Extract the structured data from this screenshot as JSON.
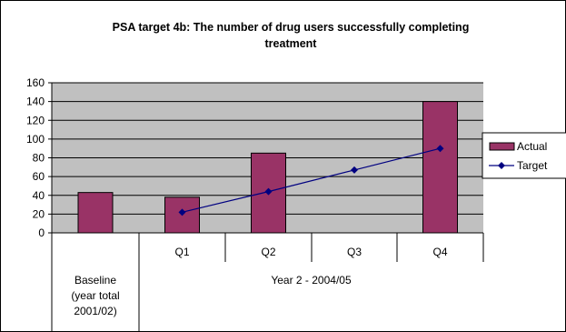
{
  "chart_data": {
    "type": "bar",
    "title_line1": "PSA target 4b: The number of drug users successfully completing",
    "title_line2": "treatment",
    "ylim": [
      0,
      160
    ],
    "yticks": [
      "0",
      "20",
      "40",
      "60",
      "80",
      "100",
      "120",
      "140",
      "160"
    ],
    "grid": true,
    "legend_position": "right",
    "categories": [
      "Baseline",
      "Q1",
      "Q2",
      "Q3",
      "Q4"
    ],
    "category_groups": [
      {
        "label_lines": [
          "Baseline",
          "(year total",
          "2001/02)"
        ],
        "categories": [
          "Baseline"
        ]
      },
      {
        "label_lines": [
          "Year 2 - 2004/05"
        ],
        "categories": [
          "Q1",
          "Q2",
          "Q3",
          "Q4"
        ]
      }
    ],
    "series": [
      {
        "name": "Actual",
        "type": "bar",
        "color": "#993366",
        "values": [
          43,
          38,
          85,
          0,
          140
        ]
      },
      {
        "name": "Target",
        "type": "line",
        "color": "#000080",
        "values": [
          null,
          22,
          44,
          67,
          90
        ]
      }
    ],
    "plot_background": "#c0c0c0"
  }
}
